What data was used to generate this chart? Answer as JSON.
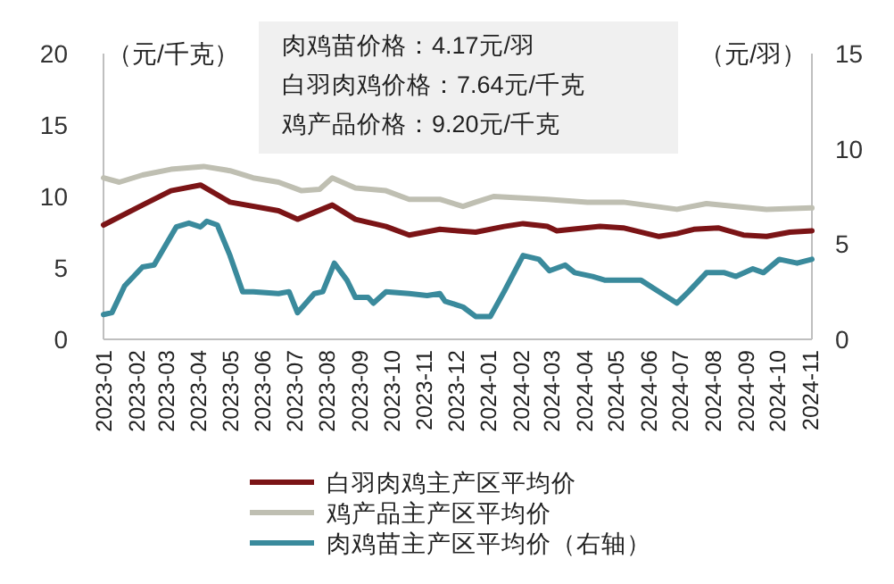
{
  "chart_data": {
    "type": "line",
    "ylabel": "（元/千克）",
    "y2label": "（元/羽）",
    "annotations": [
      "肉鸡苗价格：4.17元/羽",
      "白羽肉鸡价格：7.64元/千克",
      "鸡产品价格：9.20元/千克"
    ],
    "xlim": [
      "2023-01-01",
      "2024-11-03"
    ],
    "xticks": [
      "2023-01",
      "2023-02",
      "2023-03",
      "2023-04",
      "2023-05",
      "2023-06",
      "2023-07",
      "2023-08",
      "2023-09",
      "2023-10",
      "2023-11",
      "2023-12",
      "2024-01",
      "2024-02",
      "2024-03",
      "2024-04",
      "2024-05",
      "2024-06",
      "2024-07",
      "2024-08",
      "2024-09",
      "2024-10",
      "2024-11"
    ],
    "ylim": [
      0,
      20
    ],
    "yticks": [
      0,
      5,
      10,
      15,
      20
    ],
    "y2lim": [
      0,
      15
    ],
    "y2ticks": [
      0,
      5,
      10,
      15
    ],
    "legend": "bottom",
    "grid": false,
    "line_style": "solid",
    "series": [
      {
        "name": "白羽肉鸡主产区平均价",
        "color": "#7b1416",
        "x": [
          "2023-01-01",
          "2023-02-07",
          "2023-03-06",
          "2023-04-03",
          "2023-05-01",
          "2023-06-16",
          "2023-07-04",
          "2023-08-06",
          "2023-08-28",
          "2023-09-26",
          "2023-10-18",
          "2023-11-16",
          "2023-12-03",
          "2023-12-20",
          "2024-01-16",
          "2024-02-03",
          "2024-02-26",
          "2024-03-06",
          "2024-04-16",
          "2024-05-08",
          "2024-06-11",
          "2024-06-28",
          "2024-07-14",
          "2024-08-06",
          "2024-08-30",
          "2024-09-21",
          "2024-10-13",
          "2024-11-03"
        ],
        "values": [
          8.0,
          9.4,
          10.4,
          10.8,
          9.6,
          9.0,
          8.4,
          9.4,
          8.4,
          7.9,
          7.3,
          7.7,
          7.6,
          7.5,
          7.9,
          8.1,
          7.9,
          7.6,
          7.9,
          7.8,
          7.2,
          7.4,
          7.7,
          7.8,
          7.3,
          7.2,
          7.5,
          7.6
        ]
      },
      {
        "name": "鸡产品主产区平均价",
        "color": "#bfbfb2",
        "x": [
          "2023-01-01",
          "2023-01-16",
          "2023-02-07",
          "2023-03-06",
          "2023-04-06",
          "2023-05-01",
          "2023-05-23",
          "2023-06-16",
          "2023-07-08",
          "2023-07-25",
          "2023-08-06",
          "2023-08-28",
          "2023-09-26",
          "2023-10-18",
          "2023-11-16",
          "2023-12-08",
          "2023-12-20",
          "2024-01-06",
          "2024-02-26",
          "2024-04-04",
          "2024-05-08",
          "2024-06-28",
          "2024-07-26",
          "2024-08-23",
          "2024-09-21",
          "2024-11-03"
        ],
        "values": [
          11.3,
          11.0,
          11.5,
          11.9,
          12.1,
          11.8,
          11.3,
          11.0,
          10.4,
          10.5,
          11.3,
          10.6,
          10.4,
          9.8,
          9.8,
          9.3,
          9.6,
          10.0,
          9.8,
          9.6,
          9.6,
          9.1,
          9.5,
          9.3,
          9.1,
          9.2
        ]
      },
      {
        "name": "肉鸡苗主产区平均价（右轴）",
        "color": "#3a8a9c",
        "axis": "y2",
        "x": [
          "2023-01-01",
          "2023-01-09",
          "2023-01-21",
          "2023-02-07",
          "2023-02-18",
          "2023-03-11",
          "2023-03-23",
          "2023-04-03",
          "2023-04-09",
          "2023-04-19",
          "2023-05-01",
          "2023-05-13",
          "2023-05-23",
          "2023-06-16",
          "2023-06-26",
          "2023-07-04",
          "2023-07-20",
          "2023-07-28",
          "2023-08-08",
          "2023-08-20",
          "2023-08-28",
          "2023-09-09",
          "2023-09-14",
          "2023-09-26",
          "2023-10-18",
          "2023-11-04",
          "2023-11-16",
          "2023-11-21",
          "2023-12-08",
          "2023-12-20",
          "2024-01-03",
          "2024-01-16",
          "2024-02-03",
          "2024-02-18",
          "2024-02-28",
          "2024-03-14",
          "2024-03-23",
          "2024-04-09",
          "2024-04-21",
          "2024-05-08",
          "2024-05-25",
          "2024-06-11",
          "2024-06-28",
          "2024-07-09",
          "2024-07-26",
          "2024-08-12",
          "2024-08-23",
          "2024-09-08",
          "2024-09-18",
          "2024-10-03",
          "2024-10-20",
          "2024-11-03"
        ],
        "values": [
          1.3,
          1.4,
          2.8,
          3.8,
          3.9,
          5.9,
          6.1,
          5.9,
          6.2,
          6.0,
          4.4,
          2.5,
          2.5,
          2.4,
          2.5,
          1.4,
          2.4,
          2.5,
          4.0,
          3.1,
          2.2,
          2.2,
          1.9,
          2.5,
          2.4,
          2.3,
          2.4,
          2.0,
          1.7,
          1.2,
          1.2,
          2.5,
          4.4,
          4.2,
          3.6,
          3.9,
          3.5,
          3.3,
          3.1,
          3.1,
          3.1,
          2.5,
          1.9,
          2.5,
          3.5,
          3.5,
          3.3,
          3.7,
          3.5,
          4.2,
          4.0,
          4.2
        ]
      }
    ]
  }
}
